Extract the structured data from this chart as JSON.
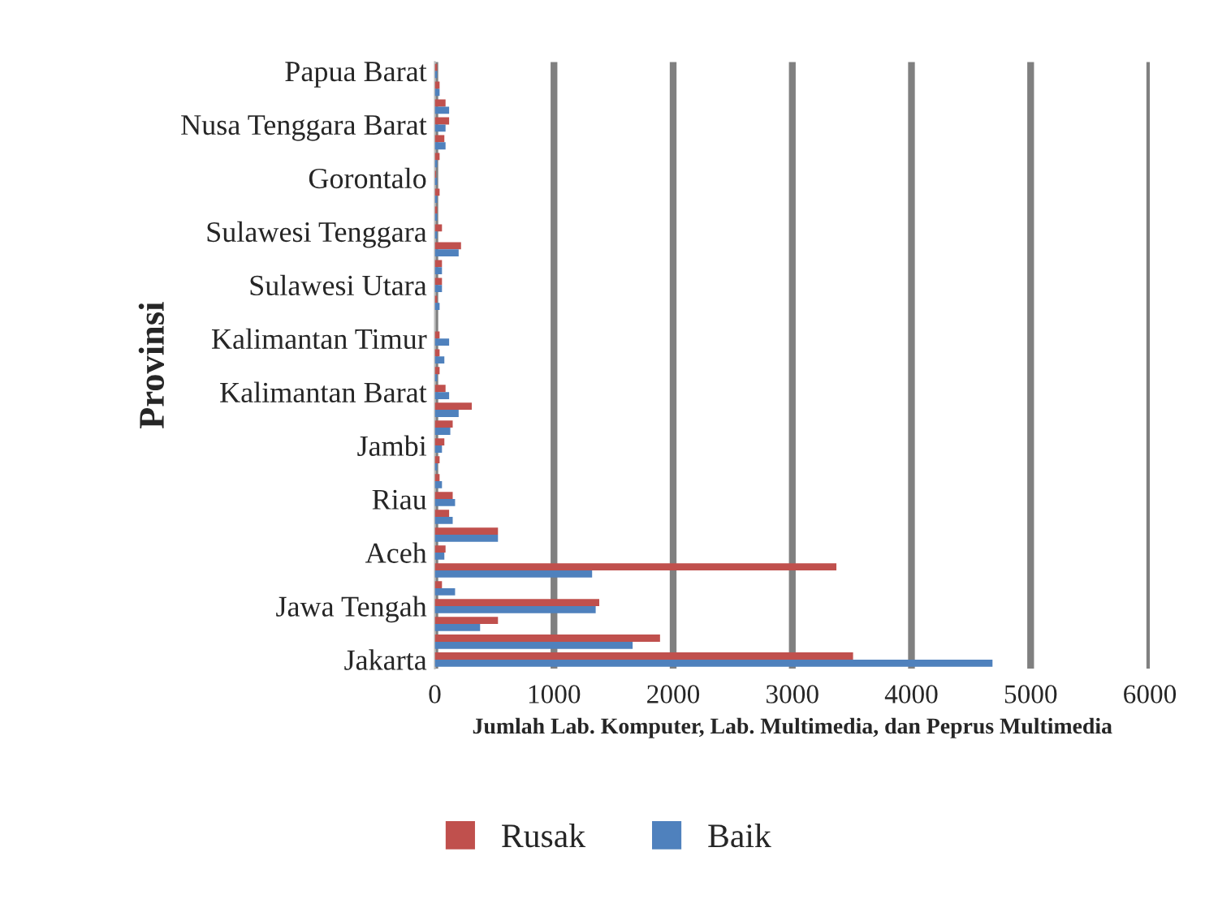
{
  "chart_data": {
    "type": "bar",
    "orientation": "horizontal",
    "xlabel": "Jumlah Lab. Komputer, Lab. Multimedia, dan Peprus Multimedia",
    "ylabel": "Provinsi",
    "categories": [
      "Papua Barat",
      null,
      null,
      "Nusa Tenggara Barat",
      null,
      null,
      "Gorontalo",
      null,
      null,
      "Sulawesi Tenggara",
      null,
      null,
      "Sulawesi Utara",
      null,
      null,
      "Kalimantan Timur",
      null,
      null,
      "Kalimantan Barat",
      null,
      null,
      "Jambi",
      null,
      null,
      "Riau",
      null,
      null,
      "Aceh",
      null,
      null,
      "Jawa Tengah",
      null,
      null,
      "Jakarta"
    ],
    "series": [
      {
        "name": "Rusak",
        "color": "#c0504d",
        "values": [
          20,
          40,
          90,
          120,
          80,
          40,
          10,
          40,
          20,
          60,
          220,
          60,
          60,
          20,
          null,
          40,
          40,
          40,
          90,
          310,
          150,
          80,
          40,
          40,
          150,
          120,
          530,
          90,
          3370,
          60,
          1380,
          530,
          1890,
          3510
        ]
      },
      {
        "name": "Baik",
        "color": "#4f81bd",
        "values": [
          20,
          40,
          120,
          90,
          90,
          20,
          20,
          20,
          20,
          20,
          200,
          60,
          60,
          40,
          null,
          120,
          80,
          20,
          120,
          200,
          130,
          60,
          20,
          60,
          170,
          150,
          530,
          80,
          1320,
          170,
          1350,
          380,
          1660,
          4680
        ]
      }
    ],
    "xlim": [
      0,
      6000
    ],
    "xticks": [
      0,
      1000,
      2000,
      3000,
      4000,
      5000,
      6000
    ],
    "grid": "x",
    "legend": "bottom"
  }
}
